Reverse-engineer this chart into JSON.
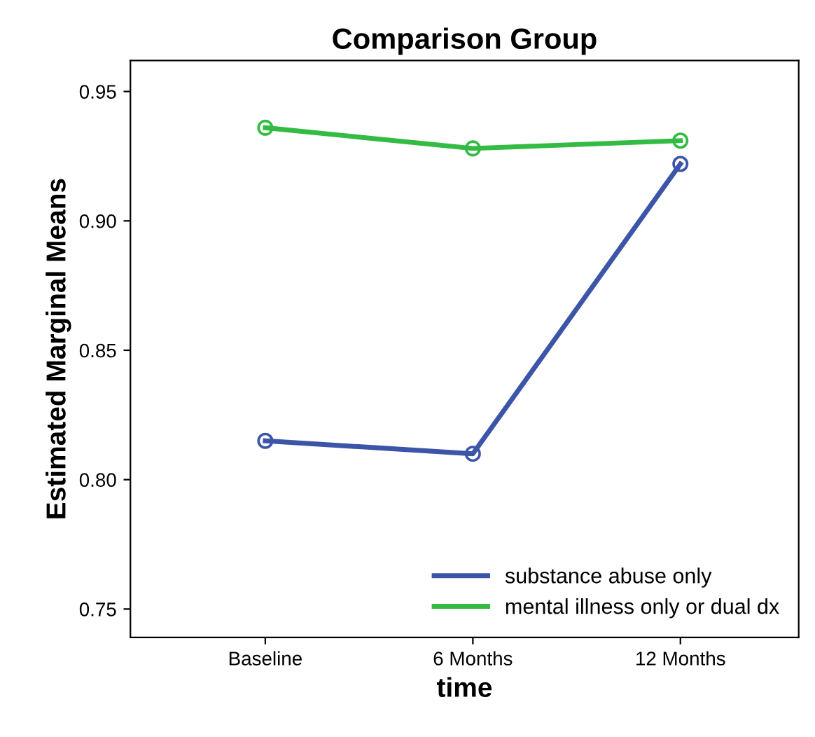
{
  "chart_data": {
    "type": "line",
    "title": "Comparison Group",
    "xlabel": "time",
    "ylabel": "Estimated Marginal Means",
    "categories": [
      "Baseline",
      "6 Months",
      "12 Months"
    ],
    "series": [
      {
        "name": "substance abuse only",
        "color": "#3d55a8",
        "values": [
          0.815,
          0.81,
          0.922
        ]
      },
      {
        "name": "mental illness only or dual dx",
        "color": "#33bb44",
        "values": [
          0.936,
          0.928,
          0.931
        ]
      }
    ],
    "ylim": [
      0.739,
      0.962
    ],
    "yticks": [
      {
        "value": 0.75,
        "label": "0.75"
      },
      {
        "value": 0.8,
        "label": "0.80"
      },
      {
        "value": 0.85,
        "label": "0.85"
      },
      {
        "value": 0.9,
        "label": "0.90"
      },
      {
        "value": 0.95,
        "label": "0.95"
      }
    ],
    "marker": "circle",
    "legend": "bottom right",
    "grid": false
  }
}
